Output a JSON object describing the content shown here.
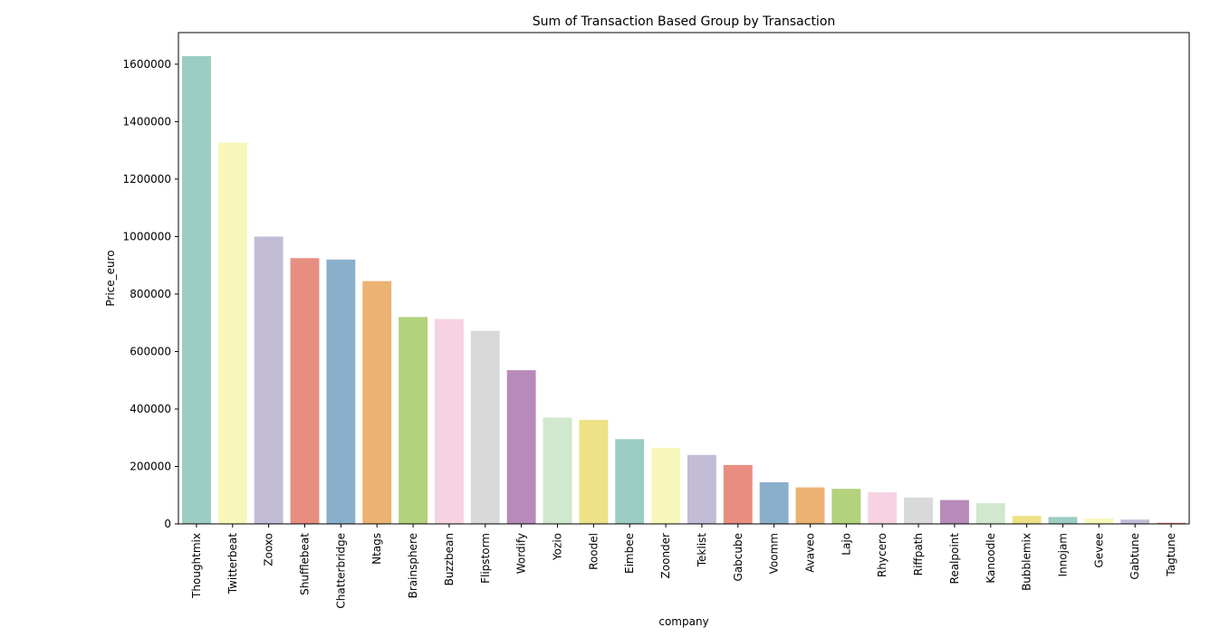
{
  "chart_data": {
    "type": "bar",
    "title": "Sum of Transaction Based Group by Transaction",
    "xlabel": "company",
    "ylabel": "Price_euro",
    "ylim": [
      0,
      1710000
    ],
    "yticks": [
      0,
      200000,
      400000,
      600000,
      800000,
      1000000,
      1200000,
      1400000,
      1600000
    ],
    "grid": false,
    "categories": [
      "Thoughtmix",
      "Twitterbeat",
      "Zooxo",
      "Shufflebeat",
      "Chatterbridge",
      "Ntags",
      "Brainsphere",
      "Buzzbean",
      "Flipstorm",
      "Wordify",
      "Yozio",
      "Roodel",
      "Eimbee",
      "Zoonder",
      "Teklist",
      "Gabcube",
      "Voomm",
      "Avaveo",
      "Lajo",
      "Rhycero",
      "Riffpath",
      "Realpoint",
      "Kanoodle",
      "Bubblemix",
      "Innojam",
      "Gevee",
      "Gabtune",
      "Tagtune"
    ],
    "values": [
      1628000,
      1327000,
      1000000,
      925000,
      920000,
      845000,
      720000,
      713000,
      672000,
      535000,
      370000,
      362000,
      295000,
      265000,
      240000,
      205000,
      145000,
      127000,
      122000,
      110000,
      92000,
      83000,
      72000,
      28000,
      24000,
      19000,
      15000,
      4000
    ],
    "colors": [
      "#9ccdc2",
      "#f8f7bb",
      "#c2bcd7",
      "#e88e81",
      "#8aafcb",
      "#ebb272",
      "#b2d27c",
      "#f6d2e3",
      "#d9d9d9",
      "#b88ab9",
      "#d0e8cd",
      "#ede286"
    ]
  }
}
